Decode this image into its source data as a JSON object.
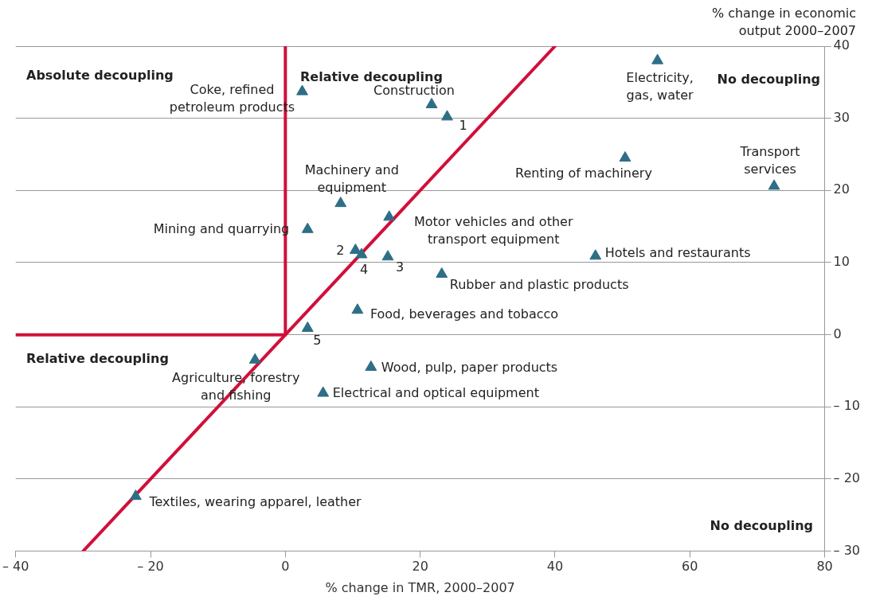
{
  "chart_data": {
    "type": "scatter",
    "xlabel": "% change in TMR, 2000–2007",
    "ylabel": "% change in economic output 2000–2007",
    "xlim": [
      -40,
      80
    ],
    "xticks": [
      {
        "value": -40,
        "label": "– 40"
      },
      {
        "value": -20,
        "label": "– 20"
      },
      0,
      20,
      40,
      60,
      80
    ],
    "ylim": [
      -30,
      40
    ],
    "yticks": [
      {
        "value": -30,
        "label": "– 30"
      },
      {
        "value": -20,
        "label": "– 20"
      },
      {
        "value": -10,
        "label": "– 10"
      },
      0,
      10,
      20,
      30,
      40
    ],
    "grid": "y",
    "series": [
      {
        "type": "line",
        "color": "#d0103a",
        "x": [
          -30,
          40
        ],
        "values": [
          -30,
          40
        ]
      },
      {
        "type": "line",
        "color": "#d0103a",
        "x": [
          0,
          0
        ],
        "values": [
          0,
          40
        ]
      },
      {
        "type": "line",
        "color": "#d0103a",
        "x": [
          -40,
          0
        ],
        "values": [
          0,
          0
        ]
      },
      {
        "marker": "triangle",
        "color": "#2e6e86",
        "x": [
          2.5,
          21.7,
          24,
          55.2,
          72.5,
          50.4,
          8.2,
          15.4,
          3.3,
          10.4,
          11.3,
          15.2,
          46,
          23.2,
          10.7,
          3.3,
          -4.5,
          12.7,
          5.6,
          -22.2
        ],
        "values": [
          33.7,
          31.9,
          30.2,
          38,
          20.6,
          24.5,
          18.2,
          16.3,
          14.6,
          11.7,
          11.1,
          10.8,
          10.9,
          8.4,
          3.4,
          0.9,
          -3.5,
          -4.5,
          -8.1,
          -22.4
        ]
      }
    ],
    "annotations": [
      "Absolute decoupling",
      "Relative decoupling",
      "No decoupling",
      "Relative decoupling",
      "No decoupling",
      {
        "text": "Coke, refined petroleum products",
        "x": 2.5,
        "y": 33.7
      },
      {
        "text": "Construction",
        "x": 21.7,
        "y": 31.9
      },
      {
        "text": "1",
        "x": 24,
        "y": 30.2
      },
      {
        "text": "Electricity, gas, water",
        "x": 55.2,
        "y": 38
      },
      {
        "text": "Transport services",
        "x": 72.5,
        "y": 20.6
      },
      {
        "text": "Renting of machinery",
        "x": 50.4,
        "y": 24.5
      },
      {
        "text": "Machinery and equipment",
        "x": 8.2,
        "y": 18.2
      },
      {
        "text": "Motor vehicles and other transport equipment",
        "x": 15.4,
        "y": 16.3
      },
      {
        "text": "Mining and quarrying",
        "x": 3.3,
        "y": 14.6
      },
      {
        "text": "2",
        "x": 10.4,
        "y": 11.7
      },
      {
        "text": "4",
        "x": 11.3,
        "y": 11.1
      },
      {
        "text": "3",
        "x": 15.2,
        "y": 10.8
      },
      {
        "text": "Hotels and restaurants",
        "x": 46,
        "y": 10.9
      },
      {
        "text": "Rubber and plastic products",
        "x": 23.2,
        "y": 8.4
      },
      {
        "text": "Food, beverages and tobacco",
        "x": 10.7,
        "y": 3.4
      },
      {
        "text": "5",
        "x": 3.3,
        "y": 0.9
      },
      {
        "text": "Agriculture, forestry and fishing",
        "x": -4.5,
        "y": -3.5
      },
      {
        "text": "Wood, pulp, paper products",
        "x": 12.7,
        "y": -4.5
      },
      {
        "text": "Electrical and optical equipment",
        "x": 5.6,
        "y": -8.1
      },
      {
        "text": "Textiles, wearing apparel, leather",
        "x": -22.2,
        "y": -22.4
      }
    ]
  }
}
